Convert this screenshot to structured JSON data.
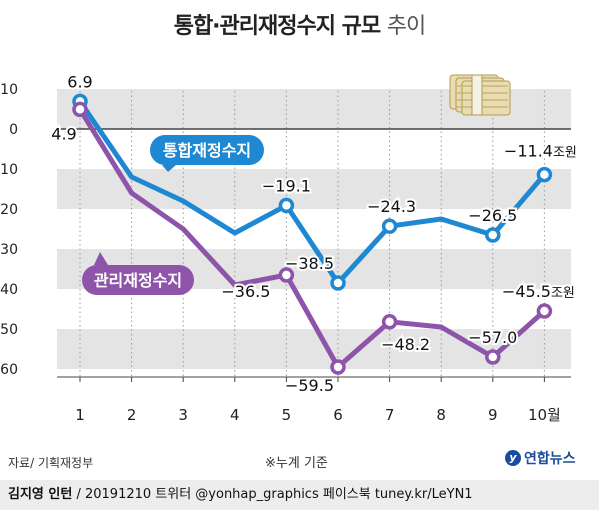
{
  "title": {
    "main": "통합·관리재정수지 규모",
    "suffix": "추이"
  },
  "source": "자료/ 기획재정부",
  "footnote": "※누계 기준",
  "brand": "연합뉴스",
  "credit": {
    "author": "김지영 인턴",
    "rest": "/ 20191210 트위터 @yonhap_graphics 페이스북 tuney.kr/LeYN1"
  },
  "colors": {
    "integrated": "#1e88d2",
    "managed": "#8d54a9",
    "band": "#e4e4e4"
  },
  "chart_data": {
    "type": "line",
    "x": [
      "1",
      "2",
      "3",
      "4",
      "5",
      "6",
      "7",
      "8",
      "9",
      "10월"
    ],
    "ylim": [
      -63,
      12
    ],
    "yticks": [
      10,
      0,
      -10,
      -20,
      -30,
      -40,
      -50,
      -60
    ],
    "unit": "조원",
    "series": [
      {
        "name": "통합재정수지",
        "values": [
          6.9,
          -12,
          -18,
          -26,
          -19.1,
          -38.5,
          -24.3,
          -22.5,
          -26.5,
          -11.4
        ],
        "labels": [
          "6.9",
          "",
          "",
          "",
          "−19.1",
          "−38.5",
          "−24.3",
          "",
          "−26.5",
          "−11.4"
        ]
      },
      {
        "name": "관리재정수지",
        "values": [
          4.9,
          -16,
          -25,
          -39,
          -36.5,
          -59.5,
          -48.2,
          -49.5,
          -57.0,
          -45.5
        ],
        "labels": [
          "4.9",
          "",
          "",
          "",
          "−36.5",
          "−59.5",
          "−48.2",
          "",
          "−57.0",
          "−45.5"
        ]
      }
    ]
  }
}
